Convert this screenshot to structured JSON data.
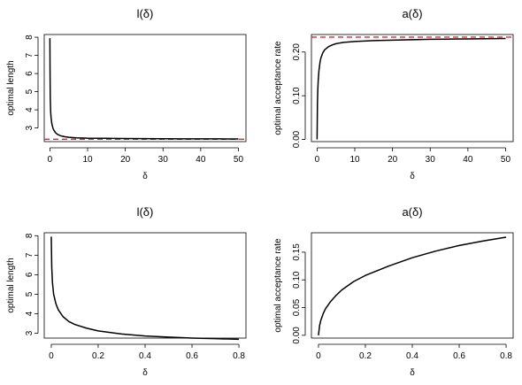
{
  "chart_data": [
    {
      "type": "line",
      "title": "l(δ)",
      "xlabel": "δ",
      "ylabel": "optimal length",
      "xlim": [
        -1.5,
        52
      ],
      "ylim": [
        2.25,
        8.15
      ],
      "xticks": [
        0,
        10,
        20,
        30,
        40,
        50
      ],
      "yticks": [
        3,
        4,
        5,
        6,
        7,
        8
      ],
      "reference_line": {
        "y": 2.38,
        "color": "#e8202a",
        "style": "dashed"
      },
      "series": [
        {
          "color": "#000000",
          "x": [
            0.0,
            0.05,
            0.1,
            0.2,
            0.3,
            0.5,
            0.8,
            1,
            1.5,
            2,
            3,
            4,
            5,
            7,
            10,
            15,
            20,
            25,
            30,
            35,
            40,
            45,
            50
          ],
          "y": [
            7.95,
            5.85,
            4.65,
            3.92,
            3.6,
            3.25,
            3.0,
            2.9,
            2.74,
            2.65,
            2.56,
            2.52,
            2.49,
            2.46,
            2.44,
            2.43,
            2.42,
            2.415,
            2.41,
            2.405,
            2.4,
            2.4,
            2.395
          ]
        }
      ]
    },
    {
      "type": "line",
      "title": "a(δ)",
      "xlabel": "δ",
      "ylabel": "optimal acceptance rate",
      "xlim": [
        -1.5,
        52
      ],
      "ylim": [
        -0.005,
        0.24
      ],
      "xticks": [
        0,
        10,
        20,
        30,
        40,
        50
      ],
      "yticks": [
        0.0,
        0.1,
        0.2
      ],
      "ytick_labels": [
        "0.00",
        "0.10",
        "0.20"
      ],
      "reference_line": {
        "y": 0.234,
        "color": "#e8202a",
        "style": "dashed"
      },
      "series": [
        {
          "color": "#000000",
          "x": [
            0.0,
            0.05,
            0.1,
            0.2,
            0.3,
            0.5,
            0.8,
            1,
            1.5,
            2,
            3,
            4,
            5,
            7,
            10,
            15,
            20,
            25,
            30,
            35,
            40,
            45,
            50
          ],
          "y": [
            0.0,
            0.045,
            0.085,
            0.115,
            0.135,
            0.158,
            0.178,
            0.186,
            0.198,
            0.205,
            0.212,
            0.216,
            0.219,
            0.222,
            0.224,
            0.226,
            0.227,
            0.228,
            0.229,
            0.2295,
            0.23,
            0.2305,
            0.231
          ]
        }
      ]
    },
    {
      "type": "line",
      "title": "l(δ)",
      "xlabel": "δ",
      "ylabel": "optimal length",
      "xlim": [
        -0.03,
        0.83
      ],
      "ylim": [
        2.75,
        8.15
      ],
      "xticks": [
        0.0,
        0.2,
        0.4,
        0.6,
        0.8
      ],
      "yticks": [
        3,
        4,
        5,
        6,
        7,
        8
      ],
      "series": [
        {
          "color": "#000000",
          "x": [
            0.0,
            0.002,
            0.005,
            0.01,
            0.02,
            0.03,
            0.05,
            0.075,
            0.1,
            0.15,
            0.2,
            0.3,
            0.4,
            0.5,
            0.6,
            0.7,
            0.8
          ],
          "y": [
            7.95,
            6.4,
            5.6,
            5.0,
            4.5,
            4.2,
            3.85,
            3.6,
            3.45,
            3.26,
            3.12,
            2.96,
            2.86,
            2.8,
            2.75,
            2.72,
            2.69
          ]
        }
      ]
    },
    {
      "type": "line",
      "title": "a(δ)",
      "xlabel": "δ",
      "ylabel": "optimal acceptance rate",
      "xlim": [
        -0.03,
        0.83
      ],
      "ylim": [
        -0.005,
        0.185
      ],
      "xticks": [
        0.0,
        0.2,
        0.4,
        0.6,
        0.8
      ],
      "yticks": [
        0.0,
        0.05,
        0.1,
        0.15
      ],
      "ytick_labels": [
        "0.00",
        "0.05",
        "0.10",
        "0.15"
      ],
      "series": [
        {
          "color": "#000000",
          "x": [
            0.0,
            0.005,
            0.01,
            0.02,
            0.03,
            0.05,
            0.075,
            0.1,
            0.15,
            0.2,
            0.3,
            0.4,
            0.5,
            0.6,
            0.7,
            0.8
          ],
          "y": [
            0.0,
            0.018,
            0.027,
            0.039,
            0.048,
            0.06,
            0.072,
            0.082,
            0.097,
            0.108,
            0.125,
            0.14,
            0.152,
            0.162,
            0.17,
            0.177
          ]
        }
      ]
    }
  ]
}
